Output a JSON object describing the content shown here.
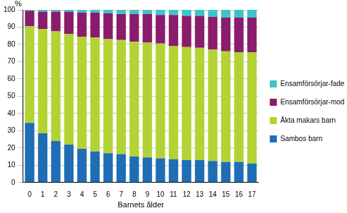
{
  "chart_data": {
    "type": "bar",
    "stacked": true,
    "grid": true,
    "legend": "right",
    "x_label": "Barnets ålder",
    "y_label": "%",
    "categories": [
      "0",
      "1",
      "2",
      "3",
      "4",
      "5",
      "6",
      "7",
      "8",
      "9",
      "10",
      "11",
      "12",
      "13",
      "14",
      "15",
      "16",
      "17"
    ],
    "ylim": [
      0,
      100
    ],
    "yticks": [
      0,
      10,
      20,
      30,
      40,
      50,
      60,
      70,
      80,
      90,
      100
    ],
    "series": [
      {
        "name": "Sambos barn",
        "color": "#1f6db4",
        "values": [
          34.5,
          28.5,
          24,
          22,
          19.5,
          18,
          17,
          16.5,
          15,
          14.5,
          14,
          13.5,
          13,
          13,
          12.5,
          12,
          12,
          11
        ]
      },
      {
        "name": "Äkta makars barn",
        "color": "#b3d334",
        "values": [
          56,
          60.5,
          63.5,
          64,
          65,
          66,
          66,
          66,
          66.5,
          66.5,
          66.5,
          65.5,
          65.5,
          65,
          64.5,
          64,
          63.5,
          64.5
        ]
      },
      {
        "name": "Ensamförsörjar-moderns barn",
        "color": "#8a1c6c",
        "values": [
          9,
          10,
          11.5,
          13,
          14,
          14.5,
          15,
          15,
          16,
          16.5,
          16.5,
          18,
          18,
          18.5,
          19,
          19.5,
          20,
          20
        ]
      },
      {
        "name": "Ensamförsörjar-faderns barn",
        "color": "#3ec3c6",
        "values": [
          0.5,
          1,
          1,
          1,
          1.5,
          1.5,
          2,
          2.5,
          2.5,
          2.5,
          3,
          3,
          3.5,
          3.5,
          4,
          4.5,
          4.5,
          4.5
        ]
      }
    ]
  }
}
